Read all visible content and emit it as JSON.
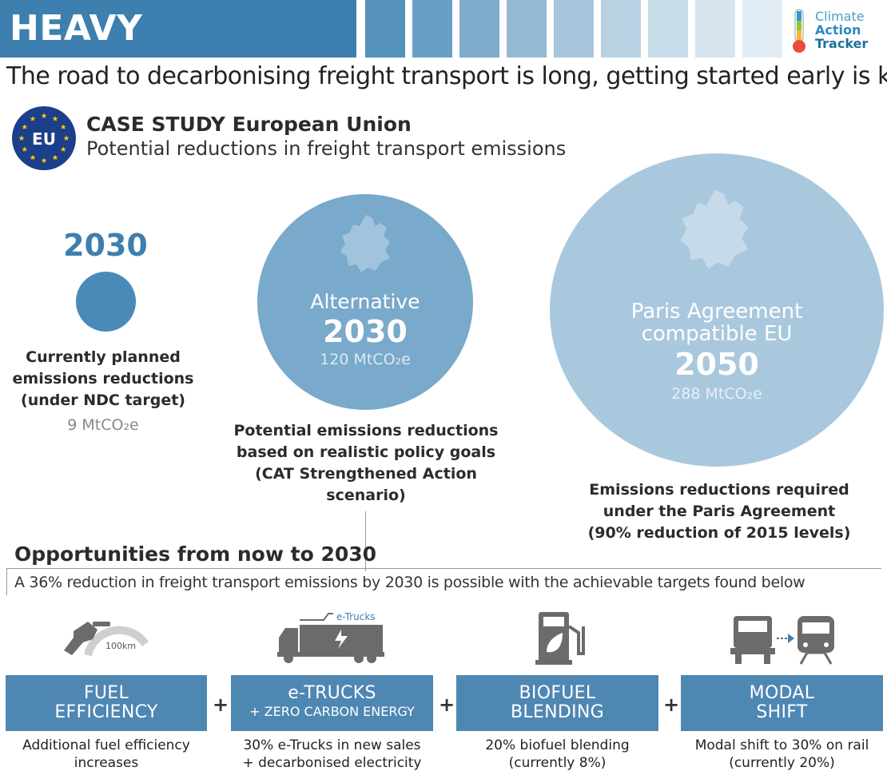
{
  "header": {
    "title": "HEAVY TRANSPORT",
    "subtitle": "The road to decarbonising freight transport is long, getting started early is key",
    "swatch_colors": [
      "#5491bb",
      "#6a9fc5",
      "#7faccb",
      "#94b9d3",
      "#a7c6dc",
      "#b8d1e3",
      "#c8dbe9",
      "#d6e4ef",
      "#e2ecf4"
    ],
    "logo": {
      "line1": "Climate",
      "line2": "Action",
      "line3": "Tracker"
    }
  },
  "case_study": {
    "badge": "EU",
    "title": "CASE STUDY European Union",
    "subtitle": "Potential reductions in freight transport emissions"
  },
  "scenarios": {
    "ndc": {
      "year": "2030",
      "caption_lines": [
        "Currently planned",
        "emissions reductions",
        "(under NDC target)"
      ],
      "value": "9 MtCO₂e",
      "color": "#4a8ab8"
    },
    "alternative": {
      "label": "Alternative",
      "year": "2030",
      "value": "120 MtCO₂e",
      "caption_lines": [
        "Potential emissions reductions",
        "based on realistic policy goals",
        "(CAT Strengthened Action",
        "scenario)"
      ],
      "color": "#79a9cb"
    },
    "paris": {
      "label_lines": [
        "Paris Agreement",
        "compatible EU"
      ],
      "year": "2050",
      "value": "288 MtCO₂e",
      "caption_lines": [
        "Emissions reductions required",
        "under the Paris Agreement",
        "(90% reduction of 2015 levels)"
      ],
      "color": "#aac8dd"
    }
  },
  "opportunities": {
    "title": "Opportunities from now to 2030",
    "subtitle": "A 36% reduction in freight transport emissions by 2030 is possible with the achievable targets found below",
    "plus": "+",
    "items": [
      {
        "icon": "fuel-nozzle-icon",
        "icon_label": "100km",
        "title_lines": [
          "FUEL",
          "EFFICIENCY"
        ],
        "desc_lines": [
          "Additional fuel efficiency",
          "increases"
        ]
      },
      {
        "icon": "electric-truck-icon",
        "icon_label": "e-Trucks",
        "title_lines": [
          "e-TRUCKS"
        ],
        "subtitle": "+ ZERO CARBON ENERGY",
        "desc_lines": [
          "30% e-Trucks in new sales",
          "+ decarbonised electricity"
        ]
      },
      {
        "icon": "biofuel-pump-icon",
        "title_lines": [
          "BIOFUEL",
          "BLENDING"
        ],
        "desc_lines": [
          "20% biofuel blending",
          "(currently 8%)"
        ]
      },
      {
        "icon": "truck-to-train-icon",
        "title_lines": [
          "MODAL",
          "SHIFT"
        ],
        "desc_lines": [
          "Modal shift to 30% on rail",
          "(currently 20%)"
        ]
      }
    ]
  }
}
